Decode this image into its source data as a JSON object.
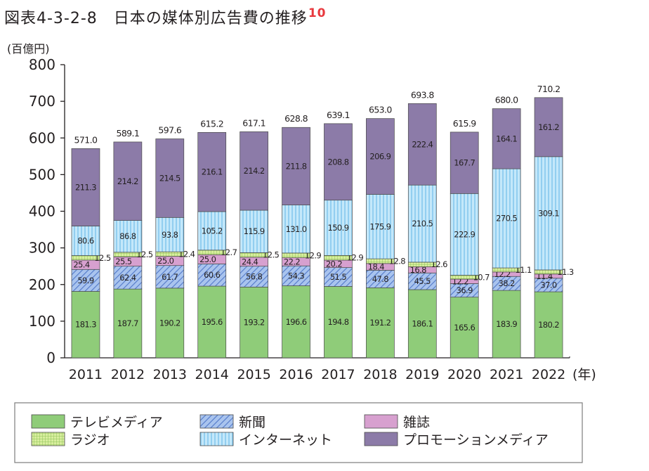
{
  "title": {
    "text": "図表4-3-2-8　日本の媒体別広告費の推移",
    "footnote_ref": "10"
  },
  "chart_data": {
    "type": "bar",
    "stacked": true,
    "title": "図表4-3-2-8　日本の媒体別広告費の推移",
    "ylabel": "(百億円)",
    "xlabel": "(年)",
    "ylim": [
      0,
      800
    ],
    "yticks": [
      0,
      100,
      200,
      300,
      400,
      500,
      600,
      700,
      800
    ],
    "categories": [
      "2011",
      "2012",
      "2013",
      "2014",
      "2015",
      "2016",
      "2017",
      "2018",
      "2019",
      "2020",
      "2021",
      "2022"
    ],
    "totals": [
      "571.0",
      "589.1",
      "597.6",
      "615.2",
      "617.1",
      "628.8",
      "639.1",
      "653.0",
      "693.8",
      "615.9",
      "680.0",
      "710.2"
    ],
    "series": [
      {
        "name": "テレビメディア",
        "color": "#8fcc79",
        "pattern": "solid",
        "values": [
          181.3,
          187.7,
          190.2,
          195.6,
          193.2,
          196.6,
          194.8,
          191.2,
          186.1,
          165.6,
          183.9,
          180.2
        ],
        "labels": [
          "181.3",
          "187.7",
          "190.2",
          "195.6",
          "193.2",
          "196.6",
          "194.8",
          "191.2",
          "186.1",
          "165.6",
          "183.9",
          "180.2"
        ]
      },
      {
        "name": "新聞",
        "color": "#8fb0e8",
        "pattern": "diagonal",
        "values": [
          59.9,
          62.4,
          61.7,
          60.6,
          56.8,
          54.3,
          51.5,
          47.8,
          45.5,
          36.9,
          38.2,
          37.0
        ],
        "labels": [
          "59.9",
          "62.4",
          "61.7",
          "60.6",
          "56.8",
          "54.3",
          "51.5",
          "47.8",
          "45.5",
          "36.9",
          "38.2",
          "37.0"
        ]
      },
      {
        "name": "雑誌",
        "color": "#d7a0cf",
        "pattern": "solid",
        "values": [
          25.4,
          25.5,
          25.0,
          25.0,
          24.4,
          22.2,
          20.2,
          18.4,
          16.8,
          12.2,
          12.2,
          11.4
        ],
        "labels": [
          "25.4",
          "25.5",
          "25.0",
          "25.0",
          "24.4",
          "22.2",
          "20.2",
          "18.4",
          "16.8",
          "12.2",
          "12.2",
          "11.4"
        ]
      },
      {
        "name": "ラジオ",
        "color": "#b5dc85",
        "pattern": "grid",
        "values": [
          12.5,
          12.5,
          12.4,
          12.7,
          12.5,
          12.9,
          12.9,
          12.8,
          12.6,
          10.7,
          11.1,
          11.3
        ],
        "labels": [
          "12.5",
          "12.5",
          "12.4",
          "12.7",
          "12.5",
          "12.9",
          "12.9",
          "12.8",
          "12.6",
          "10.7",
          "11.1",
          "11.3"
        ]
      },
      {
        "name": "インターネット",
        "color": "#b6e1f7",
        "pattern": "vertical",
        "values": [
          80.6,
          86.8,
          93.8,
          105.2,
          115.9,
          131.0,
          150.9,
          175.9,
          210.5,
          222.9,
          270.5,
          309.1
        ],
        "labels": [
          "80.6",
          "86.8",
          "93.8",
          "105.2",
          "115.9",
          "131.0",
          "150.9",
          "175.9",
          "210.5",
          "222.9",
          "270.5",
          "309.1"
        ]
      },
      {
        "name": "プロモーションメディア",
        "color": "#8c7ba8",
        "pattern": "solid",
        "values": [
          211.3,
          214.2,
          214.5,
          216.1,
          214.2,
          211.8,
          208.8,
          206.9,
          222.4,
          167.7,
          164.1,
          161.2
        ],
        "labels": [
          "211.3",
          "214.2",
          "214.5",
          "216.1",
          "214.2",
          "211.8",
          "208.8",
          "206.9",
          "222.4",
          "167.7",
          "164.1",
          "161.2"
        ]
      }
    ],
    "legend": {
      "placement": "bottom",
      "order": [
        "テレビメディア",
        "新聞",
        "雑誌",
        "ラジオ",
        "インターネット",
        "プロモーションメディア"
      ]
    },
    "grid": false
  }
}
